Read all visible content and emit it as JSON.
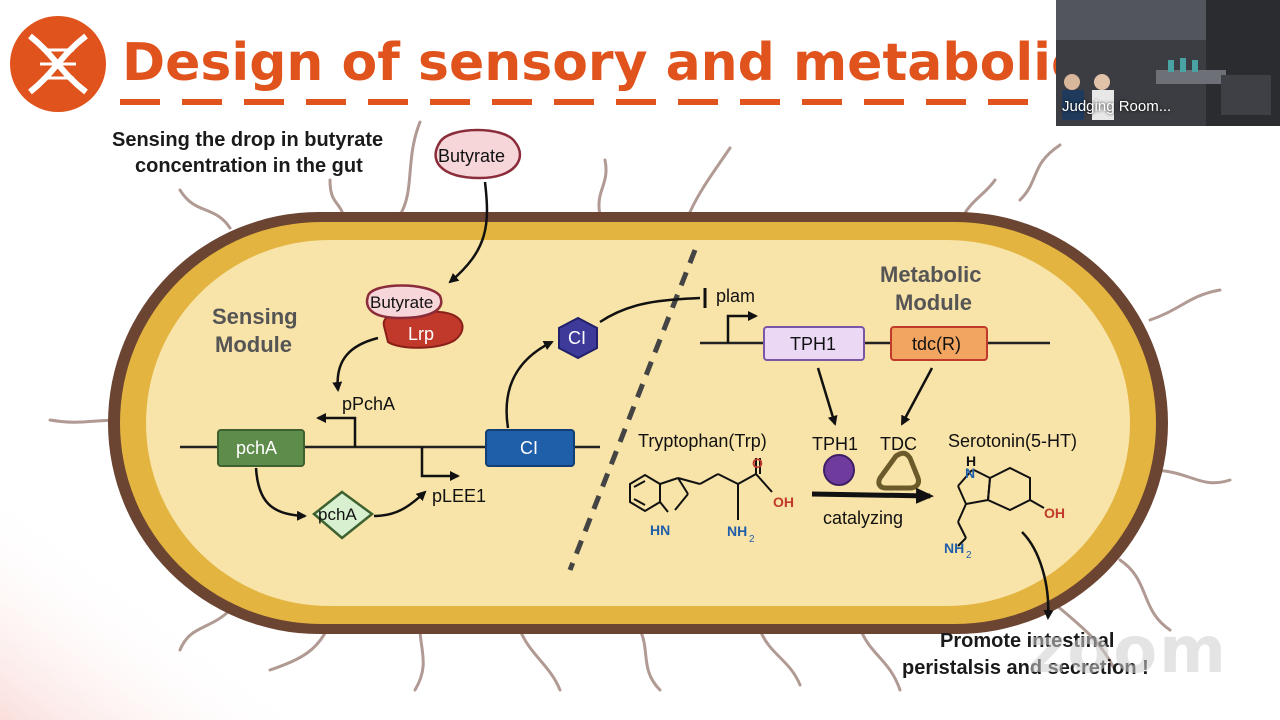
{
  "slide": {
    "title": "Design of sensory and metabolic mo",
    "logo_icon": "dna-icon"
  },
  "sensing_heading": {
    "line1": "Sensing the drop in butyrate",
    "line2": "concentration in the gut"
  },
  "modules": {
    "sensing": {
      "line1": "Sensing",
      "line2": "Module"
    },
    "metabolic": {
      "line1": "Metabolic",
      "line2": "Module"
    }
  },
  "molecules": {
    "butyrate_outside": "Butyrate",
    "butyrate_bound": "Butyrate",
    "lrp": "Lrp",
    "ci_protein": "CI",
    "pcha_protein": "pchA"
  },
  "genes": {
    "pcha": "pchA",
    "ci": "CI",
    "tph1": "TPH1",
    "tdc": "tdc(R)"
  },
  "promoters": {
    "ppcha": "pPchA",
    "plee1": "pLEE1",
    "plam": "plam"
  },
  "enzymes": {
    "tph1": "TPH1",
    "tdc": "TDC"
  },
  "reaction": {
    "substrate": "Tryptophan(Trp)",
    "product": "Serotonin(5-HT)",
    "arrow_label": "catalyzing",
    "trp_atoms": {
      "o": "O",
      "oh": "OH",
      "hn": "HN",
      "nh2": "NH",
      "sub2": "2"
    },
    "ser_atoms": {
      "h": "H",
      "n": "N",
      "oh": "OH",
      "nh2": "NH",
      "sub2": "2"
    }
  },
  "outcome": {
    "line1": "Promote intestinal",
    "line2": "peristalsis and secretion !"
  },
  "video": {
    "label": "Judging Room..."
  },
  "watermark": "zoom",
  "colors": {
    "title_orange": "#e0531c",
    "membrane_brown": "#6b4432",
    "membrane_gold": "#e3b43f",
    "cytoplasm": "#f8e3a8",
    "gene_green": "#5e8c4a",
    "gene_blue": "#1f5ea8",
    "lrp_red": "#c0392b",
    "ci_purple": "#3d3a9a",
    "tph1_lilac": "#ead8f4",
    "tdc_orange": "#f2a560"
  }
}
